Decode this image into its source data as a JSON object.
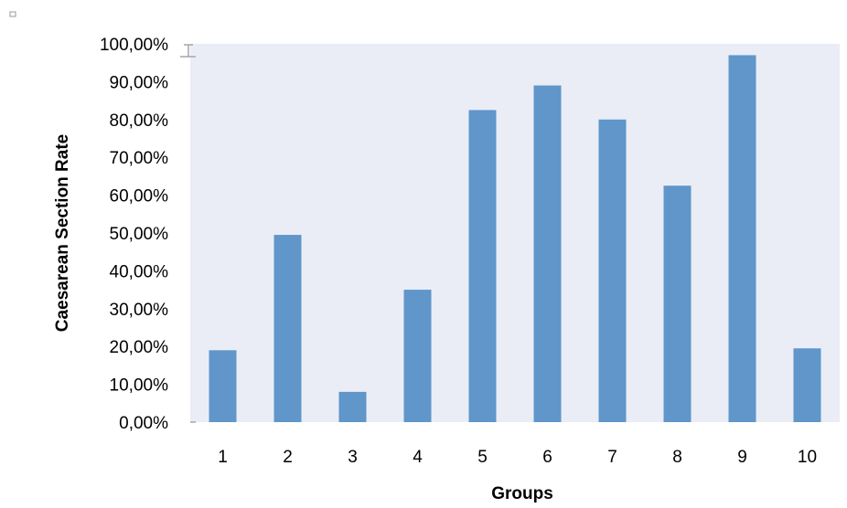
{
  "chart_data": {
    "type": "bar",
    "title": "",
    "xlabel": "Groups",
    "ylabel": "Caesarean Section Rate",
    "categories": [
      "1",
      "2",
      "3",
      "4",
      "5",
      "6",
      "7",
      "8",
      "9",
      "10"
    ],
    "values": [
      0.19,
      0.495,
      0.08,
      0.35,
      0.825,
      0.89,
      0.8,
      0.625,
      0.97,
      0.195
    ],
    "ylim": [
      0,
      1
    ],
    "yticks": [
      "0,00%",
      "10,00%",
      "20,00%",
      "30,00%",
      "40,00%",
      "50,00%",
      "60,00%",
      "70,00%",
      "80,00%",
      "90,00%",
      "100,00%"
    ],
    "colors": {
      "bar": "#6096c9",
      "plot_background": "#eaedf6",
      "axis_marker": "#a6a6a6"
    },
    "grid": false,
    "legend": "none"
  }
}
